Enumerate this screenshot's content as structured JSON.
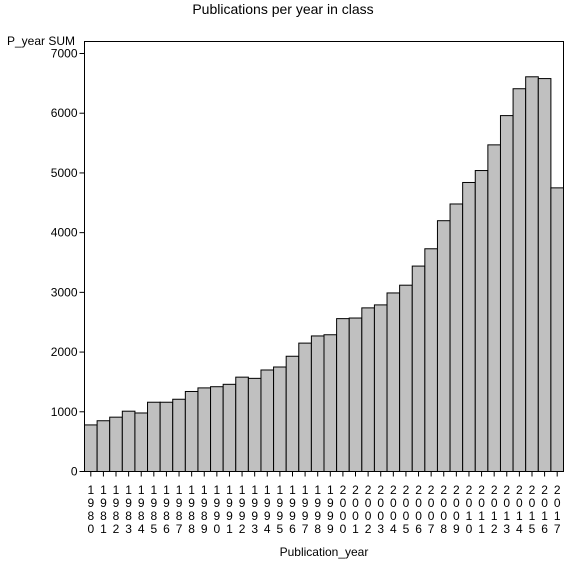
{
  "chart_data": {
    "type": "bar",
    "title": "Publications per year in class",
    "xlabel": "Publication_year",
    "ylabel": "P_year SUM",
    "ylim": [
      0,
      7000
    ],
    "yticks": [
      0,
      1000,
      2000,
      3000,
      4000,
      5000,
      6000,
      7000
    ],
    "grid": false,
    "bar_color": "#c0c0c0",
    "categories": [
      "1980",
      "1981",
      "1982",
      "1983",
      "1984",
      "1985",
      "1986",
      "1987",
      "1988",
      "1989",
      "1990",
      "1991",
      "1992",
      "1993",
      "1994",
      "1995",
      "1996",
      "1997",
      "1998",
      "1999",
      "2000",
      "2001",
      "2002",
      "2003",
      "2004",
      "2005",
      "2006",
      "2007",
      "2008",
      "2009",
      "2010",
      "2011",
      "2012",
      "2013",
      "2014",
      "2015",
      "2016",
      "2017"
    ],
    "values": [
      780,
      850,
      910,
      1010,
      980,
      1160,
      1160,
      1210,
      1340,
      1400,
      1420,
      1460,
      1580,
      1560,
      1700,
      1750,
      1930,
      2150,
      2270,
      2290,
      2560,
      2570,
      2740,
      2790,
      2990,
      3120,
      3440,
      3730,
      4200,
      4480,
      4840,
      5040,
      5470,
      5960,
      6410,
      6610,
      6580,
      4750
    ]
  }
}
